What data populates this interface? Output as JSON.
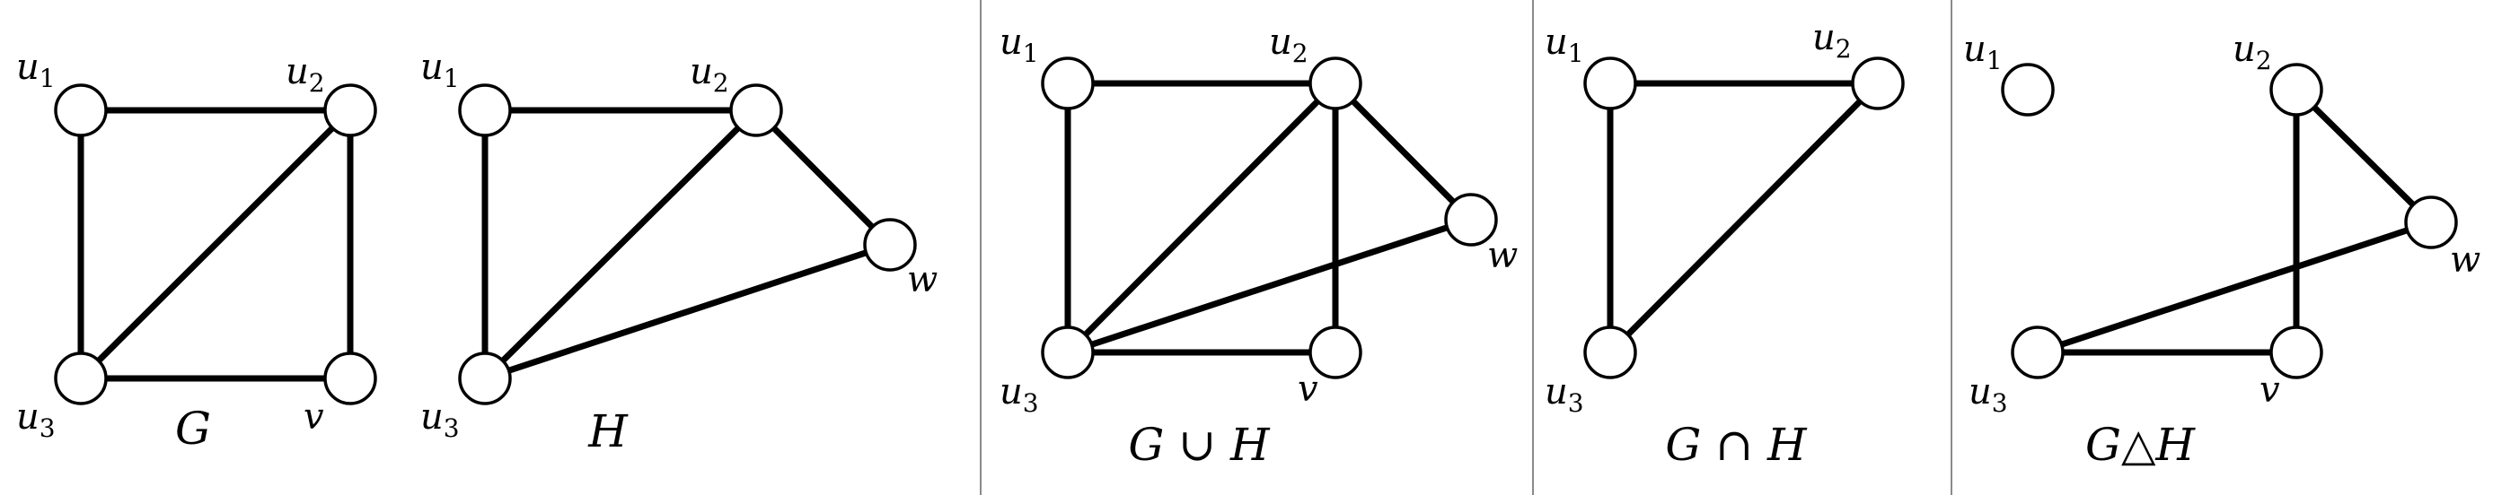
{
  "panels": [
    {
      "id": "G",
      "caption": "G",
      "nodes": [
        {
          "id": "u1",
          "label": "u",
          "sub": "1"
        },
        {
          "id": "u2",
          "label": "u",
          "sub": "2"
        },
        {
          "id": "u3",
          "label": "u",
          "sub": "3"
        },
        {
          "id": "v",
          "label": "v",
          "sub": ""
        }
      ],
      "edges": [
        [
          "u1",
          "u2"
        ],
        [
          "u1",
          "u3"
        ],
        [
          "u2",
          "u3"
        ],
        [
          "u2",
          "v"
        ],
        [
          "u3",
          "v"
        ]
      ]
    },
    {
      "id": "H",
      "caption": "H",
      "nodes": [
        {
          "id": "u1",
          "label": "u",
          "sub": "1"
        },
        {
          "id": "u2",
          "label": "u",
          "sub": "2"
        },
        {
          "id": "u3",
          "label": "u",
          "sub": "3"
        },
        {
          "id": "w",
          "label": "w",
          "sub": ""
        }
      ],
      "edges": [
        [
          "u1",
          "u2"
        ],
        [
          "u1",
          "u3"
        ],
        [
          "u2",
          "u3"
        ],
        [
          "u2",
          "w"
        ],
        [
          "u3",
          "w"
        ]
      ]
    },
    {
      "id": "union",
      "caption": "G ∪ H",
      "nodes": [
        {
          "id": "u1",
          "label": "u",
          "sub": "1"
        },
        {
          "id": "u2",
          "label": "u",
          "sub": "2"
        },
        {
          "id": "u3",
          "label": "u",
          "sub": "3"
        },
        {
          "id": "w",
          "label": "w",
          "sub": ""
        },
        {
          "id": "v",
          "label": "v",
          "sub": ""
        }
      ],
      "edges": [
        [
          "u1",
          "u2"
        ],
        [
          "u1",
          "u3"
        ],
        [
          "u2",
          "u3"
        ],
        [
          "u2",
          "w"
        ],
        [
          "u2",
          "v"
        ],
        [
          "u3",
          "w"
        ],
        [
          "u3",
          "v"
        ]
      ]
    },
    {
      "id": "intersection",
      "caption": "G ∩ H",
      "nodes": [
        {
          "id": "u1",
          "label": "u",
          "sub": "1"
        },
        {
          "id": "u2",
          "label": "u",
          "sub": "2"
        },
        {
          "id": "u3",
          "label": "u",
          "sub": "3"
        }
      ],
      "edges": [
        [
          "u1",
          "u2"
        ],
        [
          "u1",
          "u3"
        ],
        [
          "u2",
          "u3"
        ]
      ]
    },
    {
      "id": "symdiff",
      "caption": "G△H",
      "nodes": [
        {
          "id": "u1",
          "label": "u",
          "sub": "1"
        },
        {
          "id": "u2",
          "label": "u",
          "sub": "2"
        },
        {
          "id": "u3",
          "label": "u",
          "sub": "3"
        },
        {
          "id": "w",
          "label": "w",
          "sub": ""
        },
        {
          "id": "v",
          "label": "v",
          "sub": ""
        }
      ],
      "edges": [
        [
          "u2",
          "w"
        ],
        [
          "u2",
          "v"
        ],
        [
          "u3",
          "w"
        ],
        [
          "u3",
          "v"
        ]
      ]
    }
  ]
}
